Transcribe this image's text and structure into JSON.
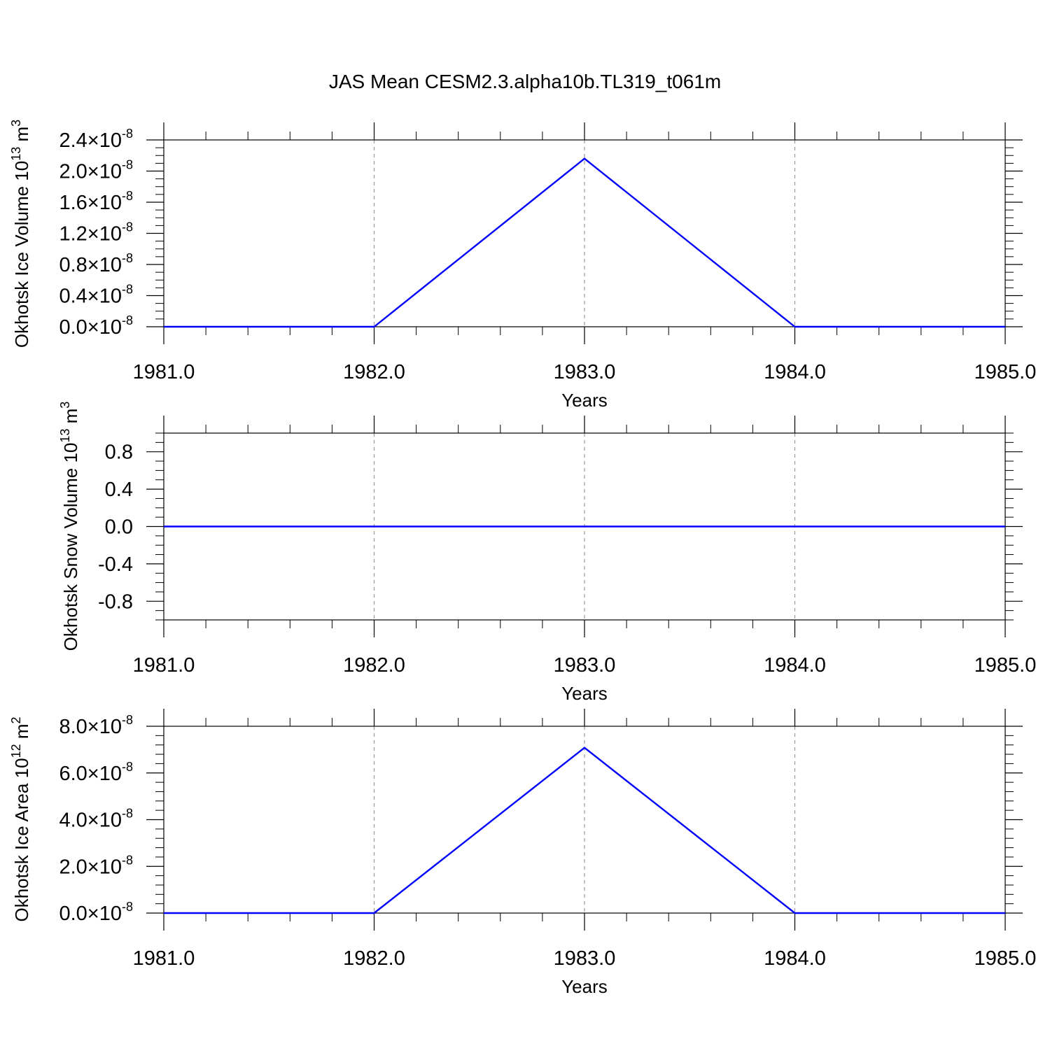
{
  "title": "JAS Mean CESM2.3.alpha10b.TL319_t061m",
  "colors": {
    "line": "#0000ff",
    "axis": "#000000",
    "grid": "#999999"
  },
  "chart_data": [
    {
      "type": "line",
      "xlabel": "Years",
      "ylabel": {
        "text": "Okhotsk Ice Volume 10",
        "exp": "13",
        "unit": " m",
        "unit_exp": "3"
      },
      "xlim": [
        1981,
        1985
      ],
      "ylim": [
        0,
        2.4e-08
      ],
      "x_ticks": [
        "1981.0",
        "1982.0",
        "1983.0",
        "1984.0",
        "1985.0"
      ],
      "y_ticks": [
        {
          "mantissa": "0.0",
          "times": "×10",
          "exp": "-8"
        },
        {
          "mantissa": "0.4",
          "times": "×10",
          "exp": "-8"
        },
        {
          "mantissa": "0.8",
          "times": "×10",
          "exp": "-8"
        },
        {
          "mantissa": "1.2",
          "times": "×10",
          "exp": "-8"
        },
        {
          "mantissa": "1.6",
          "times": "×10",
          "exp": "-8"
        },
        {
          "mantissa": "2.0",
          "times": "×10",
          "exp": "-8"
        },
        {
          "mantissa": "2.4",
          "times": "×10",
          "exp": "-8"
        }
      ],
      "y_tick_values": [
        0,
        4e-09,
        8e-09,
        1.2e-08,
        1.6e-08,
        2e-08,
        2.4e-08
      ],
      "y_minor_step": 1e-09,
      "grid": "x-dashed",
      "x": [
        1981,
        1982,
        1983,
        1984,
        1985
      ],
      "y": [
        0,
        0,
        2.16e-08,
        0,
        0
      ]
    },
    {
      "type": "line",
      "xlabel": "Years",
      "ylabel": {
        "text": "Okhotsk Snow Volume 10",
        "exp": "13",
        "unit": " m",
        "unit_exp": "3"
      },
      "xlim": [
        1981,
        1985
      ],
      "ylim": [
        -1,
        1
      ],
      "x_ticks": [
        "1981.0",
        "1982.0",
        "1983.0",
        "1984.0",
        "1985.0"
      ],
      "y_ticks": [
        {
          "mantissa": "-0.8",
          "times": "",
          "exp": ""
        },
        {
          "mantissa": "-0.4",
          "times": "",
          "exp": ""
        },
        {
          "mantissa": "0.0",
          "times": "",
          "exp": ""
        },
        {
          "mantissa": "0.4",
          "times": "",
          "exp": ""
        },
        {
          "mantissa": "0.8",
          "times": "",
          "exp": ""
        }
      ],
      "y_tick_values": [
        -0.8,
        -0.4,
        0,
        0.4,
        0.8
      ],
      "y_minor_step": 0.1,
      "grid": "x-dashed",
      "x": [
        1981,
        1982,
        1983,
        1984,
        1985
      ],
      "y": [
        0,
        0,
        0,
        0,
        0
      ]
    },
    {
      "type": "line",
      "xlabel": "Years",
      "ylabel": {
        "text": "Okhotsk Ice Area 10",
        "exp": "12",
        "unit": " m",
        "unit_exp": "2"
      },
      "xlim": [
        1981,
        1985
      ],
      "ylim": [
        0,
        8e-08
      ],
      "x_ticks": [
        "1981.0",
        "1982.0",
        "1983.0",
        "1984.0",
        "1985.0"
      ],
      "y_ticks": [
        {
          "mantissa": "0.0",
          "times": "×10",
          "exp": "-8"
        },
        {
          "mantissa": "2.0",
          "times": "×10",
          "exp": "-8"
        },
        {
          "mantissa": "4.0",
          "times": "×10",
          "exp": "-8"
        },
        {
          "mantissa": "6.0",
          "times": "×10",
          "exp": "-8"
        },
        {
          "mantissa": "8.0",
          "times": "×10",
          "exp": "-8"
        }
      ],
      "y_tick_values": [
        0,
        2e-08,
        4e-08,
        6e-08,
        8e-08
      ],
      "y_minor_step": 4e-09,
      "grid": "x-dashed",
      "x": [
        1981,
        1982,
        1983,
        1984,
        1985
      ],
      "y": [
        0,
        0,
        7.08e-08,
        0,
        0
      ]
    }
  ]
}
